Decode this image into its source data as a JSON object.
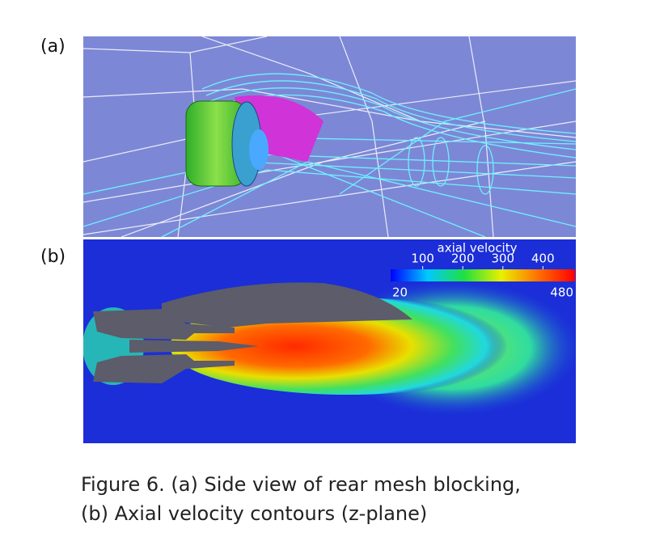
{
  "panels": [
    {
      "label": "(a)"
    },
    {
      "label": "(b)",
      "colorbar": {
        "title": "axial velocity",
        "min": 20,
        "max": 480,
        "ticks": [
          100,
          200,
          300,
          400
        ]
      }
    }
  ],
  "caption": [
    "Figure 6. (a) Side view of rear mesh blocking,",
    "(b) Axial velocity contours (z-plane)"
  ]
}
